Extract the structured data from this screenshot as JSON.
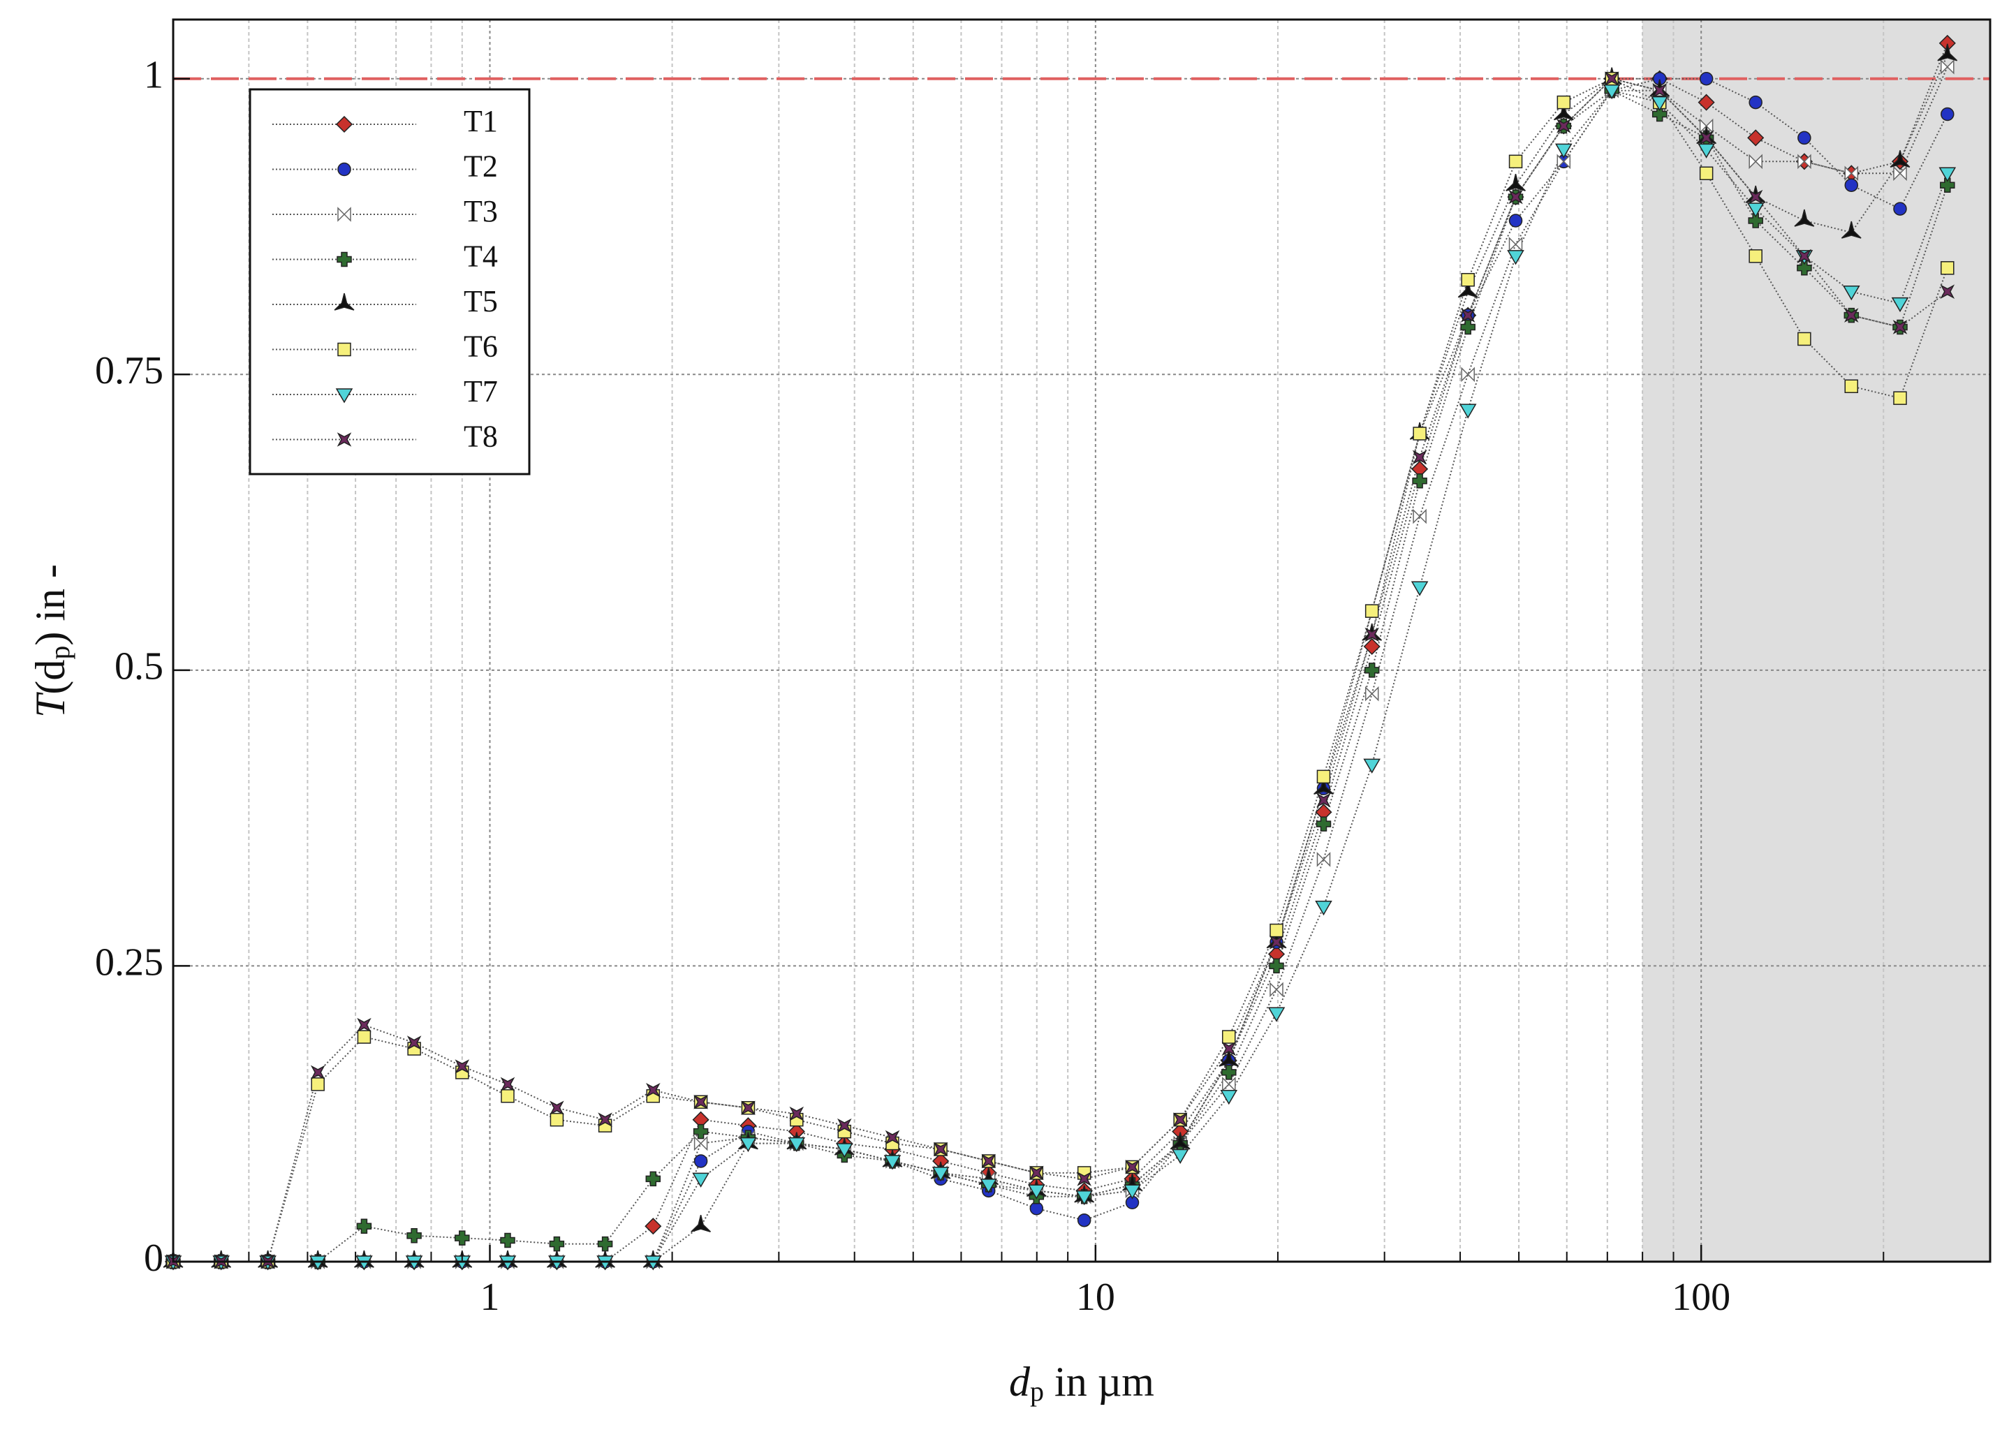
{
  "chart_data": {
    "type": "scatter-line",
    "xlabel": {
      "var": "d",
      "sub": "p",
      "rest": " in µm"
    },
    "ylabel": {
      "var": "T",
      "open": "(d",
      "sub": "p",
      "rest": ") in -"
    },
    "xscale": "log",
    "xlim": [
      0.3,
      300
    ],
    "ylim": [
      0,
      1.05
    ],
    "xticks": [
      1,
      10,
      100
    ],
    "xminor_ticks": [
      0.3,
      0.4,
      0.5,
      0.6,
      0.7,
      0.8,
      0.9,
      2,
      3,
      4,
      5,
      6,
      7,
      8,
      9,
      20,
      30,
      40,
      50,
      60,
      70,
      80,
      90,
      200,
      300
    ],
    "yticks": [
      0,
      0.25,
      0.5,
      0.75,
      1
    ],
    "grid": true,
    "shaded_xrange": [
      80,
      300
    ],
    "reference_line": {
      "y": 1,
      "color": "#e06060"
    },
    "legend": "upper left",
    "x": [
      0.3,
      0.36,
      0.43,
      0.52,
      0.62,
      0.75,
      0.9,
      1.07,
      1.29,
      1.55,
      1.86,
      2.23,
      2.67,
      3.21,
      3.85,
      4.62,
      5.55,
      6.66,
      7.99,
      9.58,
      11.5,
      13.8,
      16.6,
      19.9,
      23.8,
      28.6,
      34.3,
      41.2,
      49.4,
      59.3,
      71.2,
      85.4,
      102,
      123,
      148,
      177,
      213,
      255
    ],
    "series": [
      {
        "name": "T1",
        "color": "#c8322c",
        "marker": "diamond",
        "values": [
          0,
          0,
          0,
          0,
          0,
          0,
          0,
          0,
          0,
          0,
          0.03,
          0.12,
          0.115,
          0.11,
          0.1,
          0.095,
          0.085,
          0.075,
          0.065,
          0.06,
          0.07,
          0.11,
          0.17,
          0.26,
          0.38,
          0.52,
          0.67,
          0.8,
          0.9,
          0.96,
          1.0,
          1.0,
          0.98,
          0.95,
          0.93,
          0.92,
          0.93,
          1.03
        ]
      },
      {
        "name": "T2",
        "color": "#2233c4",
        "marker": "circle",
        "values": [
          0,
          0,
          0,
          0,
          0,
          0,
          0,
          0,
          0,
          0,
          0,
          0.085,
          0.11,
          0.1,
          0.095,
          0.085,
          0.07,
          0.06,
          0.045,
          0.035,
          0.05,
          0.1,
          0.17,
          0.27,
          0.4,
          0.55,
          0.7,
          0.8,
          0.88,
          0.93,
          0.99,
          1.0,
          1.0,
          0.98,
          0.95,
          0.91,
          0.89,
          0.97
        ]
      },
      {
        "name": "T3",
        "color": "#b0b0b0",
        "marker": "bowtie",
        "values": [
          0,
          0,
          0,
          0,
          0,
          0,
          0,
          0,
          0,
          0,
          0,
          0.1,
          0.105,
          0.1,
          0.095,
          0.085,
          0.075,
          0.07,
          0.06,
          0.055,
          0.06,
          0.1,
          0.15,
          0.23,
          0.34,
          0.48,
          0.63,
          0.75,
          0.86,
          0.93,
          0.99,
          0.99,
          0.96,
          0.93,
          0.93,
          0.92,
          0.92,
          1.01
        ]
      },
      {
        "name": "T4",
        "color": "#2f6b30",
        "marker": "plus",
        "values": [
          0,
          0,
          0,
          0,
          0.03,
          0.022,
          0.02,
          0.018,
          0.015,
          0.015,
          0.07,
          0.11,
          0.105,
          0.1,
          0.09,
          0.085,
          0.075,
          0.065,
          0.055,
          0.055,
          0.065,
          0.1,
          0.16,
          0.25,
          0.37,
          0.5,
          0.66,
          0.79,
          0.9,
          0.96,
          0.99,
          0.97,
          0.95,
          0.88,
          0.84,
          0.8,
          0.79,
          0.91
        ]
      },
      {
        "name": "T5",
        "color": "#111111",
        "marker": "star3",
        "values": [
          0,
          0,
          0,
          0,
          0,
          0,
          0,
          0,
          0,
          0,
          0,
          0.03,
          0.1,
          0.1,
          0.095,
          0.085,
          0.075,
          0.07,
          0.06,
          0.055,
          0.065,
          0.1,
          0.17,
          0.27,
          0.4,
          0.53,
          0.7,
          0.82,
          0.91,
          0.97,
          1.0,
          0.99,
          0.95,
          0.9,
          0.88,
          0.87,
          0.93,
          1.02
        ]
      },
      {
        "name": "T6",
        "color": "#f6f07c",
        "marker": "square",
        "values": [
          0,
          0,
          0,
          0.15,
          0.19,
          0.18,
          0.16,
          0.14,
          0.12,
          0.115,
          0.14,
          0.135,
          0.13,
          0.12,
          0.11,
          0.1,
          0.095,
          0.085,
          0.075,
          0.075,
          0.08,
          0.12,
          0.19,
          0.28,
          0.41,
          0.55,
          0.7,
          0.83,
          0.93,
          0.98,
          1.0,
          0.98,
          0.92,
          0.85,
          0.78,
          0.74,
          0.73,
          0.84
        ]
      },
      {
        "name": "T7",
        "color": "#50d4d8",
        "marker": "triangle-down",
        "values": [
          0,
          0,
          0,
          0,
          0,
          0,
          0,
          0,
          0,
          0,
          0,
          0.07,
          0.1,
          0.1,
          0.095,
          0.085,
          0.075,
          0.065,
          0.06,
          0.055,
          0.06,
          0.09,
          0.14,
          0.21,
          0.3,
          0.42,
          0.57,
          0.72,
          0.85,
          0.94,
          0.99,
          0.98,
          0.94,
          0.89,
          0.85,
          0.82,
          0.81,
          0.92
        ]
      },
      {
        "name": "T8",
        "color": "#6b2a5c",
        "marker": "star4",
        "values": [
          0,
          0,
          0,
          0.16,
          0.2,
          0.185,
          0.165,
          0.15,
          0.13,
          0.12,
          0.145,
          0.135,
          0.13,
          0.125,
          0.115,
          0.105,
          0.095,
          0.085,
          0.075,
          0.07,
          0.08,
          0.12,
          0.18,
          0.27,
          0.39,
          0.53,
          0.68,
          0.8,
          0.9,
          0.96,
          1.0,
          0.99,
          0.95,
          0.9,
          0.85,
          0.8,
          0.79,
          0.82
        ]
      }
    ]
  }
}
